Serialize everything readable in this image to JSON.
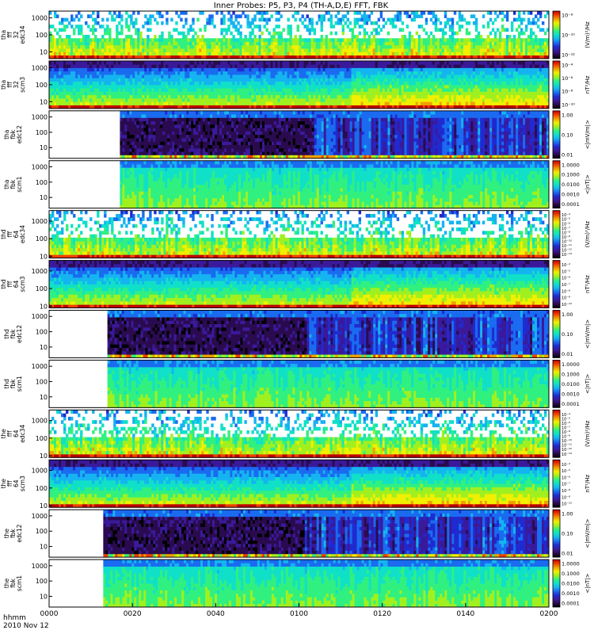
{
  "chart_data": {
    "type": "heatmap",
    "title": "Inner Probes: P5, P3, P4 (TH-A,D,E) FFT, FBK",
    "x_axis": {
      "label_top": "hhmm",
      "label_bottom": "2010 Nov 12",
      "ticks": [
        "0000",
        "0020",
        "0040",
        "0100",
        "0120",
        "0140",
        "0200"
      ],
      "range_minutes": [
        0,
        120
      ]
    },
    "panels": [
      {
        "ylabel": [
          "tha",
          "fff",
          "32",
          "edc34"
        ],
        "yticks": [
          "1000",
          "100",
          "10"
        ],
        "ytick_decades": [
          3,
          2,
          1
        ],
        "ylog_range": [
          0.6,
          3.4
        ],
        "colorbar_label": "(V/m)²/Hz",
        "colorbar_ticks": [
          "10⁻⁸",
          "10⁻¹⁰",
          "10⁻¹²"
        ],
        "data_start_minute": 0,
        "kind": "sparse-efield"
      },
      {
        "ylabel": [
          "tha",
          "fff",
          "32",
          "scm3"
        ],
        "yticks": [
          "1000",
          "100",
          "10"
        ],
        "ytick_decades": [
          3,
          2,
          1
        ],
        "ylog_range": [
          0.6,
          3.4
        ],
        "colorbar_label": "nT²/Hz",
        "colorbar_ticks": [
          "10⁻⁴",
          "10⁻⁶",
          "10⁻⁸",
          "10⁻¹⁰"
        ],
        "data_start_minute": 0,
        "kind": "scm"
      },
      {
        "ylabel": [
          "tha",
          "fbk",
          "edc12"
        ],
        "yticks": [
          "1000",
          "100",
          "10"
        ],
        "ytick_decades": [
          3,
          2,
          1
        ],
        "ylog_range": [
          0.3,
          3.4
        ],
        "colorbar_label": "<|mV/m|>",
        "colorbar_ticks": [
          "1.00",
          "0.10",
          "0.01"
        ],
        "data_start_minute": 17,
        "kind": "fbk-edc"
      },
      {
        "ylabel": [
          "tha",
          "fbk",
          "scm1"
        ],
        "yticks": [
          "1000",
          "100",
          "10"
        ],
        "ytick_decades": [
          3,
          2,
          1
        ],
        "ylog_range": [
          0.3,
          3.4
        ],
        "colorbar_label": "<|nT|>",
        "colorbar_ticks": [
          "1.0000",
          "0.1000",
          "0.0100",
          "0.0010",
          "0.0001"
        ],
        "data_start_minute": 17,
        "kind": "fbk-scm"
      },
      {
        "ylabel": [
          "thd",
          "fff",
          "64",
          "edc34"
        ],
        "yticks": [
          "1000",
          "100",
          "10"
        ],
        "ytick_decades": [
          3,
          2,
          1
        ],
        "ylog_range": [
          0.9,
          3.6
        ],
        "colorbar_label": "(V/m)²/Hz",
        "colorbar_ticks": [
          "10⁻⁴",
          "10⁻⁵",
          "10⁻⁶",
          "10⁻⁷",
          "10⁻⁸",
          "10⁻⁹",
          "10⁻¹⁰",
          "10⁻¹¹",
          "10⁻¹²",
          "10⁻¹³"
        ],
        "data_start_minute": 0,
        "kind": "sparse-efield"
      },
      {
        "ylabel": [
          "thd",
          "fff",
          "64",
          "scm3"
        ],
        "yticks": [
          "1000",
          "100",
          "10"
        ],
        "ytick_decades": [
          3,
          2,
          1
        ],
        "ylog_range": [
          0.9,
          3.6
        ],
        "colorbar_label": "nT²/Hz",
        "colorbar_ticks": [
          "10⁻⁴",
          "10⁻⁵",
          "10⁻⁶",
          "10⁻⁷",
          "10⁻⁸",
          "10⁻⁹",
          "10⁻¹⁰"
        ],
        "data_start_minute": 0,
        "kind": "scm"
      },
      {
        "ylabel": [
          "thd",
          "fbk",
          "edc12"
        ],
        "yticks": [
          "1000",
          "100",
          "10"
        ],
        "ytick_decades": [
          3,
          2,
          1
        ],
        "ylog_range": [
          0.3,
          3.4
        ],
        "colorbar_label": "<|mV/m|>",
        "colorbar_ticks": [
          "1.00",
          "0.10",
          "0.01"
        ],
        "data_start_minute": 14,
        "kind": "fbk-edc"
      },
      {
        "ylabel": [
          "thd",
          "fbk",
          "scm1"
        ],
        "yticks": [
          "1000",
          "100",
          "10"
        ],
        "ytick_decades": [
          3,
          2,
          1
        ],
        "ylog_range": [
          0.3,
          3.4
        ],
        "colorbar_label": "<|nT|>",
        "colorbar_ticks": [
          "1.0000",
          "0.1000",
          "0.0100",
          "0.0010",
          "0.0001"
        ],
        "data_start_minute": 14,
        "kind": "fbk-scm"
      },
      {
        "ylabel": [
          "the",
          "fff",
          "64",
          "edc34"
        ],
        "yticks": [
          "1000",
          "100",
          "10"
        ],
        "ytick_decades": [
          3,
          2,
          1
        ],
        "ylog_range": [
          0.9,
          3.6
        ],
        "colorbar_label": "(V/m)²/Hz",
        "colorbar_ticks": [
          "10⁻⁴",
          "10⁻⁵",
          "10⁻⁶",
          "10⁻⁷",
          "10⁻⁸",
          "10⁻⁹",
          "10⁻¹⁰",
          "10⁻¹¹",
          "10⁻¹²",
          "10⁻¹³"
        ],
        "data_start_minute": 0,
        "kind": "sparse-efield"
      },
      {
        "ylabel": [
          "the",
          "fff",
          "64",
          "scm3"
        ],
        "yticks": [
          "1000",
          "100",
          "10"
        ],
        "ytick_decades": [
          3,
          2,
          1
        ],
        "ylog_range": [
          0.9,
          3.6
        ],
        "colorbar_label": "nT²/Hz",
        "colorbar_ticks": [
          "10⁻⁴",
          "10⁻⁵",
          "10⁻⁶",
          "10⁻⁷",
          "10⁻⁸",
          "10⁻⁹",
          "10⁻¹⁰"
        ],
        "data_start_minute": 0,
        "kind": "scm"
      },
      {
        "ylabel": [
          "the",
          "fbk",
          "edc12"
        ],
        "yticks": [
          "1000",
          "100",
          "10"
        ],
        "ytick_decades": [
          3,
          2,
          1
        ],
        "ylog_range": [
          0.3,
          3.4
        ],
        "colorbar_label": "<|mV/m|>",
        "colorbar_ticks": [
          "1.00",
          "0.10",
          "0.01"
        ],
        "data_start_minute": 13,
        "kind": "fbk-edc"
      },
      {
        "ylabel": [
          "the",
          "fbk",
          "scm1"
        ],
        "yticks": [
          "1000",
          "100",
          "10"
        ],
        "ytick_decades": [
          3,
          2,
          1
        ],
        "ylog_range": [
          0.3,
          3.4
        ],
        "colorbar_label": "<|nT|>",
        "colorbar_ticks": [
          "1.0000",
          "0.1000",
          "0.0100",
          "0.0010",
          "0.0001"
        ],
        "data_start_minute": 13,
        "kind": "fbk-scm"
      }
    ]
  },
  "colors": {
    "colormap": [
      "#000000",
      "#2a0b4f",
      "#3a1a9a",
      "#1f2bd0",
      "#1a6bf0",
      "#15b4f0",
      "#10e0c8",
      "#30f080",
      "#a0f020",
      "#f0f000",
      "#f0a000",
      "#f04000",
      "#c00000"
    ],
    "frame": "#000000",
    "background": "#ffffff"
  }
}
